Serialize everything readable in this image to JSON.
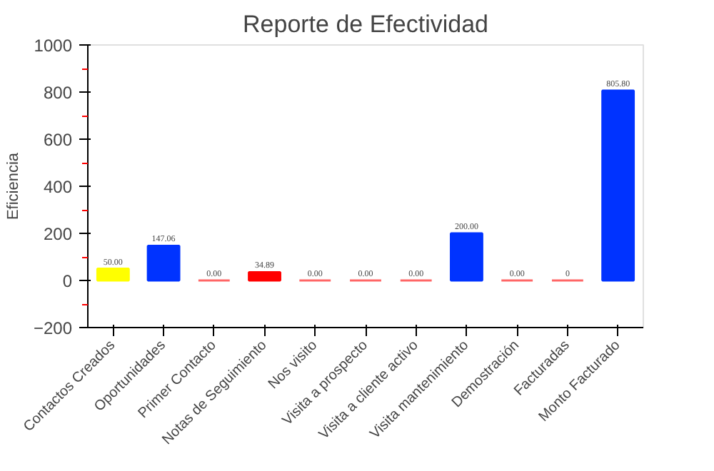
{
  "chart_data": {
    "type": "bar",
    "title": "Reporte de Efectividad",
    "ylabel": "Eficiencia",
    "categories": [
      "Contactos Creados",
      "Oportunidades",
      "Primer Contacto",
      "Notas de Seguimiento",
      "Nos visito",
      "Visita a prospecto",
      "Visita a cliente activo",
      "Visita mantenimiento",
      "Demostración",
      "Facturadas",
      "Monto Facturado"
    ],
    "values": [
      50,
      147.06,
      0,
      34.89,
      0,
      0,
      0,
      200,
      0,
      0,
      805.8
    ],
    "colors": [
      "#ffff00",
      "#0033ff",
      "#ff6666",
      "#ff0000",
      "#ff6666",
      "#ff6666",
      "#ff6666",
      "#0033ff",
      "#ff6666",
      "#ff6666",
      "#0033ff"
    ],
    "value_labels": [
      "50.00",
      "147.06",
      "0.00",
      "34.89",
      "0.00",
      "0.00",
      "0.00",
      "200.00",
      "0.00",
      "0",
      "805.80"
    ],
    "ylim": [
      -200,
      1000
    ],
    "yticks": [
      -200,
      0,
      200,
      400,
      600,
      800,
      1000
    ],
    "grid": false
  }
}
